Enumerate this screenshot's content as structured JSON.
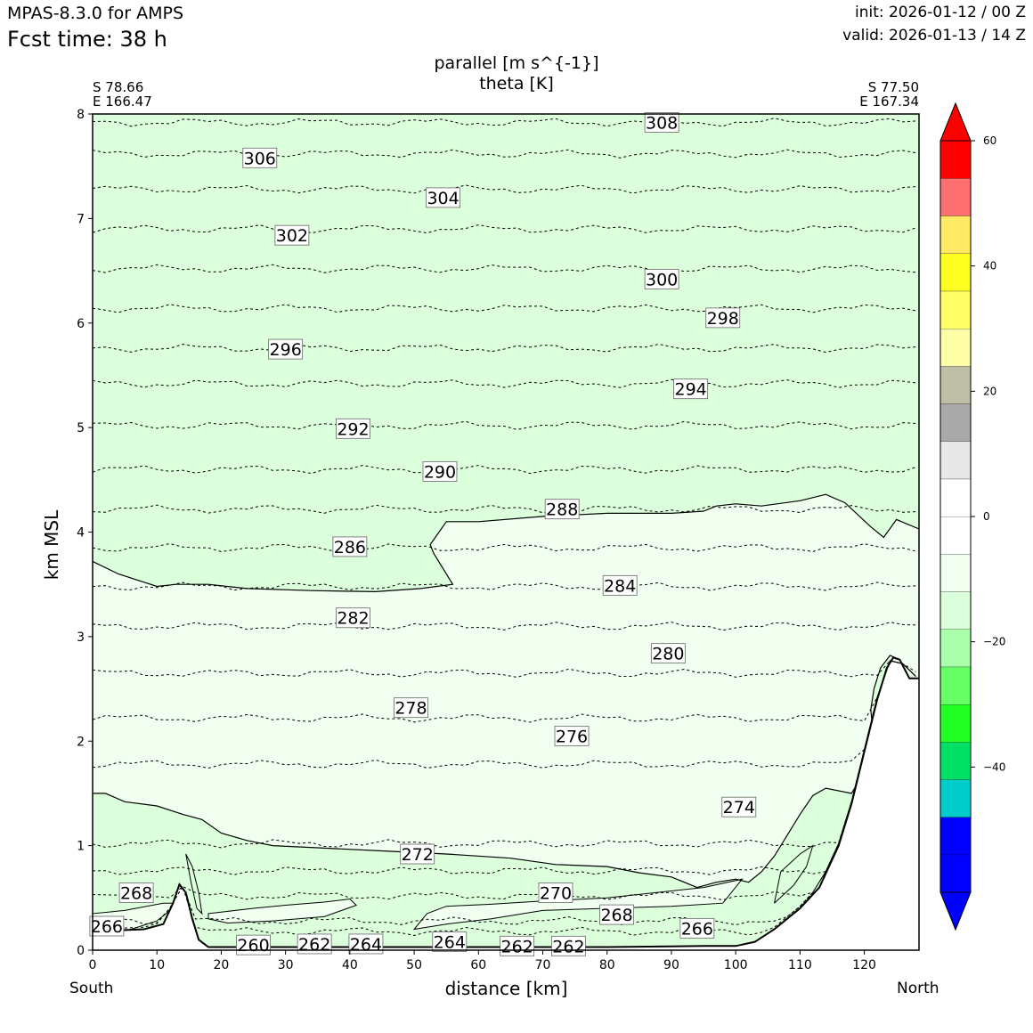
{
  "header": {
    "model": "MPAS-8.3.0 for AMPS",
    "fcst": "Fcst time:   38 h",
    "init": "init: 2026-01-12 / 00 Z",
    "valid": "valid: 2026-01-13 / 14 Z"
  },
  "chart_data": {
    "type": "contour cross-section",
    "title_lines": [
      "parallel [m s^{-1}]",
      "theta [K]"
    ],
    "left_endpoint": [
      "S 78.66",
      "E 166.47"
    ],
    "right_endpoint": [
      "S 77.50",
      "E 167.34"
    ],
    "xlabel": "distance [km]",
    "ylabel": "km MSL",
    "x_end_labels": [
      "South",
      "North"
    ],
    "xlim": [
      0,
      128.5
    ],
    "ylim": [
      0,
      8
    ],
    "x_ticks": [
      0,
      10,
      20,
      30,
      40,
      50,
      60,
      70,
      80,
      90,
      100,
      110,
      120
    ],
    "y_ticks": [
      0,
      1,
      2,
      3,
      4,
      5,
      6,
      7,
      8
    ],
    "theta_contour_labels": [
      {
        "v": "308",
        "x": 88.5,
        "y": 7.92
      },
      {
        "v": "306",
        "x": 26,
        "y": 7.58
      },
      {
        "v": "304",
        "x": 54.5,
        "y": 7.2
      },
      {
        "v": "302",
        "x": 31,
        "y": 6.84
      },
      {
        "v": "300",
        "x": 88.5,
        "y": 6.42
      },
      {
        "v": "298",
        "x": 98,
        "y": 6.05
      },
      {
        "v": "296",
        "x": 30,
        "y": 5.75
      },
      {
        "v": "294",
        "x": 93,
        "y": 5.37
      },
      {
        "v": "292",
        "x": 40.5,
        "y": 4.99
      },
      {
        "v": "290",
        "x": 54,
        "y": 4.58
      },
      {
        "v": "288",
        "x": 73,
        "y": 4.22
      },
      {
        "v": "286",
        "x": 40,
        "y": 3.86
      },
      {
        "v": "284",
        "x": 82,
        "y": 3.49
      },
      {
        "v": "282",
        "x": 40.5,
        "y": 3.18
      },
      {
        "v": "280",
        "x": 89.5,
        "y": 2.84
      },
      {
        "v": "278",
        "x": 49.5,
        "y": 2.32
      },
      {
        "v": "276",
        "x": 74.5,
        "y": 2.05
      },
      {
        "v": "274",
        "x": 100.5,
        "y": 1.37
      },
      {
        "v": "272",
        "x": 50.5,
        "y": 0.92
      },
      {
        "v": "270",
        "x": 72,
        "y": 0.55
      },
      {
        "v": "268",
        "x": 6.8,
        "y": 0.55
      },
      {
        "v": "268",
        "x": 81.5,
        "y": 0.34
      },
      {
        "v": "266",
        "x": 2.2,
        "y": 0.23
      },
      {
        "v": "266",
        "x": 94,
        "y": 0.21
      },
      {
        "v": "264",
        "x": 42.5,
        "y": 0.06
      },
      {
        "v": "264",
        "x": 55.5,
        "y": 0.08
      },
      {
        "v": "262",
        "x": 34.5,
        "y": 0.06
      },
      {
        "v": "262",
        "x": 66,
        "y": 0.04
      },
      {
        "v": "262",
        "x": 74,
        "y": 0.04
      },
      {
        "v": "260",
        "x": 25,
        "y": 0.05
      }
    ],
    "theta_baseline_heights_km": [
      0.18,
      0.28,
      0.52,
      0.76,
      1.02,
      1.78,
      2.22,
      2.65,
      3.1,
      3.48,
      3.85,
      4.22,
      4.6,
      5.02,
      5.42,
      5.76,
      6.14,
      6.52,
      6.9,
      7.28,
      7.62,
      7.92
    ],
    "colorbar": {
      "colors": [
        "#0000ff",
        "#0000ff",
        "#0000ff",
        "#00cccc",
        "#00e066",
        "#22ff22",
        "#66ff66",
        "#aaffaa",
        "#dcffdc",
        "#f0fff0",
        "#ffffff",
        "#ffffff",
        "#e8e8e8",
        "#aaaaaa",
        "#bfbfa8",
        "#ffffa8",
        "#ffff66",
        "#ffff22",
        "#ffea66",
        "#ff7070",
        "#ff0000",
        "#ff0000"
      ],
      "ticks": [
        -40,
        -20,
        0,
        20,
        40,
        60
      ],
      "tick_labels": [
        "−40",
        "−20",
        "0",
        "20",
        "40",
        "60"
      ],
      "range": [
        -60,
        60
      ]
    },
    "fill_colors": {
      "band_minus10_to_5": "#dcffdc",
      "band_minus5_to_0": "#f0fff0"
    }
  }
}
